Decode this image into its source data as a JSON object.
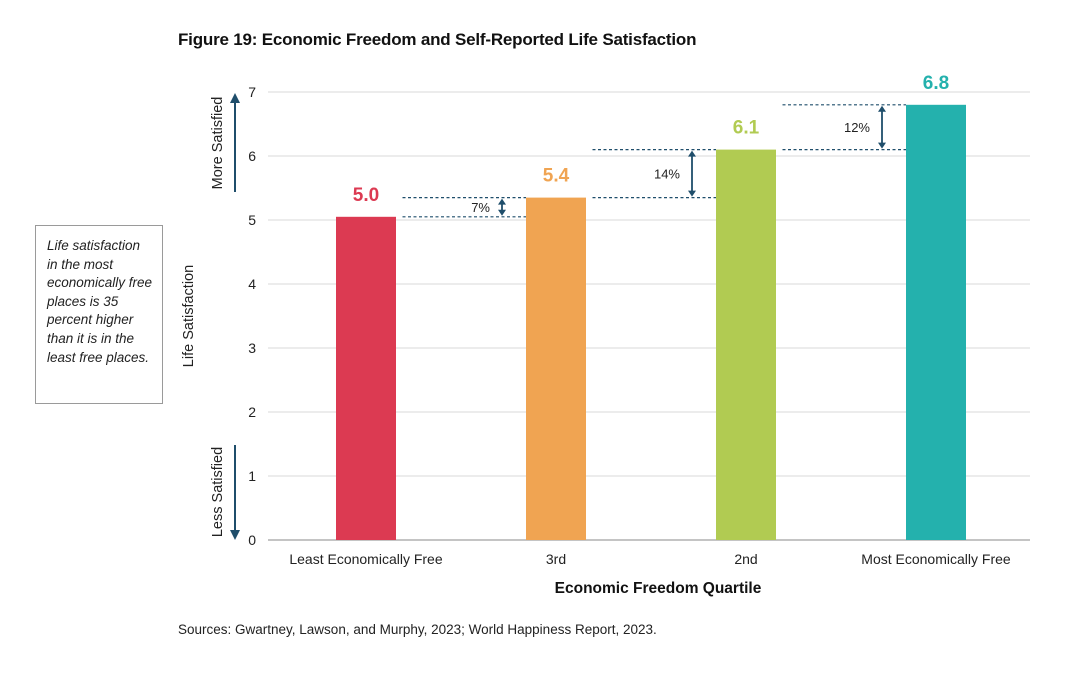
{
  "figure": {
    "title": "Figure 19: Economic Freedom and Self-Reported Life Satisfaction",
    "source": "Sources: Gwartney, Lawson, and Murphy, 2023; World Happiness Report, 2023."
  },
  "callout": {
    "text": "Life satisfaction in the most economically free places is 35 percent higher than it is in the least free places."
  },
  "chart_data": {
    "type": "bar",
    "title": "Figure 19: Economic Freedom and Self-Reported Life Satisfaction",
    "xlabel": "Economic Freedom Quartile",
    "ylabel": "Life Satisfaction",
    "ylim": [
      0,
      7
    ],
    "yticks": [
      0,
      1,
      2,
      3,
      4,
      5,
      6,
      7
    ],
    "grid": true,
    "categories": [
      "Least Economically Free",
      "3rd",
      "2nd",
      "Most Economically Free"
    ],
    "values": [
      5.05,
      5.35,
      6.1,
      6.8
    ],
    "value_labels": [
      "5.0",
      "5.4",
      "6.1",
      "6.8"
    ],
    "colors": [
      "#dc3a52",
      "#f0a452",
      "#b1cb52",
      "#24b1ad"
    ],
    "increments": [
      {
        "from": 0,
        "to": 1,
        "label": "7%"
      },
      {
        "from": 1,
        "to": 2,
        "label": "14%"
      },
      {
        "from": 2,
        "to": 3,
        "label": "12%"
      }
    ],
    "axis_annotations": {
      "top": "More Satisfied",
      "bottom": "Less Satisfied"
    },
    "accent_color": "#1f4e6b"
  }
}
